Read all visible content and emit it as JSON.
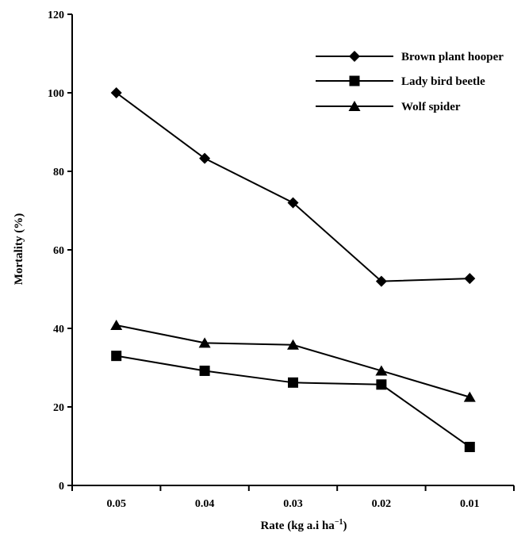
{
  "chart_data": {
    "type": "line",
    "title": "",
    "xlabel": "Rate (kg a.i ha",
    "xlabel_superscript": "−1",
    "xlabel_close": ")",
    "ylabel": "Mortality (%)",
    "categories": [
      "0.05",
      "0.04",
      "0.03",
      "0.02",
      "0.01"
    ],
    "ylim": [
      0,
      120
    ],
    "yticks": [
      "0",
      "20",
      "40",
      "60",
      "80",
      "100",
      "120"
    ],
    "grid": false,
    "legend_position": "top-right",
    "series": [
      {
        "name": "Brown plant hooper",
        "marker": "diamond",
        "values": [
          100,
          83.3,
          72,
          52,
          52.7
        ],
        "color": "#000000"
      },
      {
        "name": "Lady bird beetle",
        "marker": "square",
        "values": [
          33,
          29.2,
          26.2,
          25.7,
          9.8
        ],
        "color": "#000000"
      },
      {
        "name": "Wolf spider",
        "marker": "triangle",
        "values": [
          40.8,
          36.3,
          35.8,
          29.2,
          22.5
        ],
        "color": "#000000"
      }
    ]
  }
}
